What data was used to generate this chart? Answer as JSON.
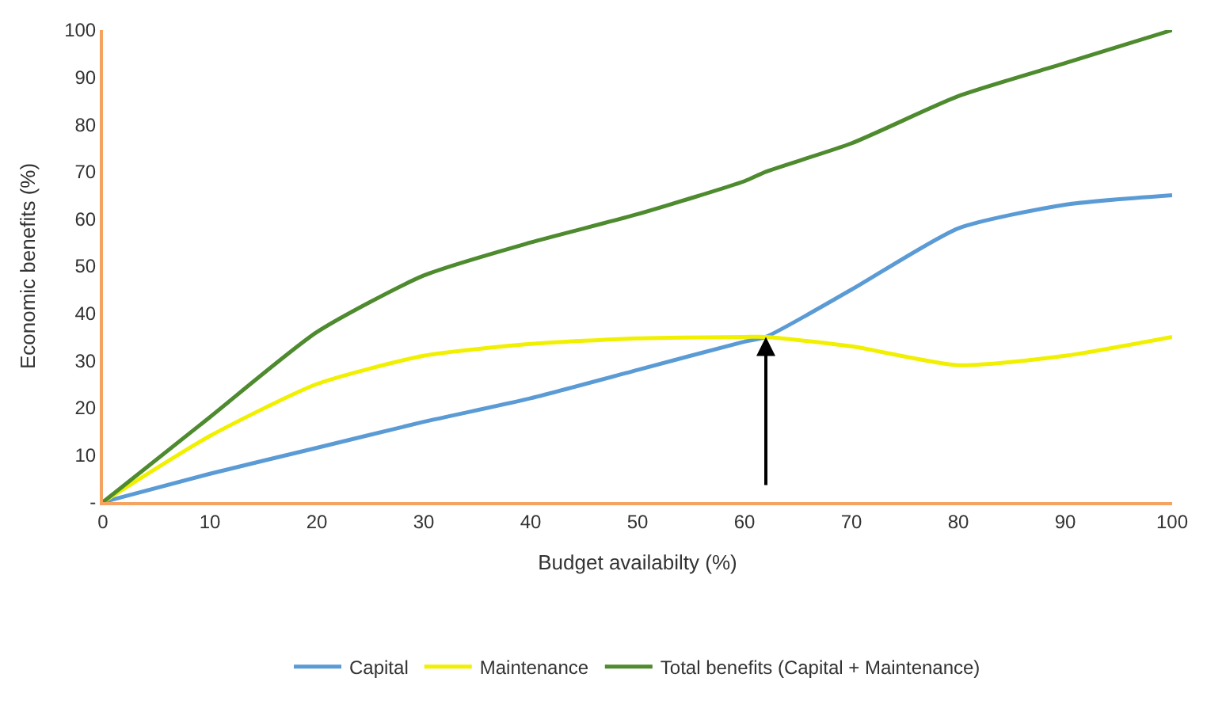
{
  "chart_data": {
    "type": "line",
    "xlabel": "Budget availabilty (%)",
    "ylabel": "Economic benefits (%)",
    "xlim": [
      0,
      100
    ],
    "xticks": [
      0,
      10,
      20,
      30,
      40,
      50,
      60,
      70,
      80,
      90,
      100
    ],
    "ylim": [
      0,
      100
    ],
    "yticks": [
      {
        "value": 0,
        "label": "-"
      },
      10,
      20,
      30,
      40,
      50,
      60,
      70,
      80,
      90,
      100
    ],
    "x": [
      0,
      10,
      20,
      30,
      40,
      50,
      60,
      62,
      70,
      80,
      90,
      100
    ],
    "series": [
      {
        "name": "Capital",
        "color": "#5b9bd5",
        "values": [
          0,
          6,
          11.5,
          17,
          22,
          28,
          34,
          35,
          45,
          58,
          63,
          65
        ]
      },
      {
        "name": "Maintenance",
        "color": "#f0f000",
        "values": [
          0,
          14,
          25,
          31,
          33.5,
          34.7,
          35,
          35,
          33,
          29,
          31,
          35
        ]
      },
      {
        "name": "Total benefits (Capital + Maintenance)",
        "color": "#4e8a2e",
        "values": [
          0,
          18,
          36,
          48,
          55,
          61,
          68,
          70,
          76,
          86,
          93,
          100
        ]
      }
    ],
    "legend": "bottom",
    "marker": "none",
    "line_style": "solid"
  }
}
